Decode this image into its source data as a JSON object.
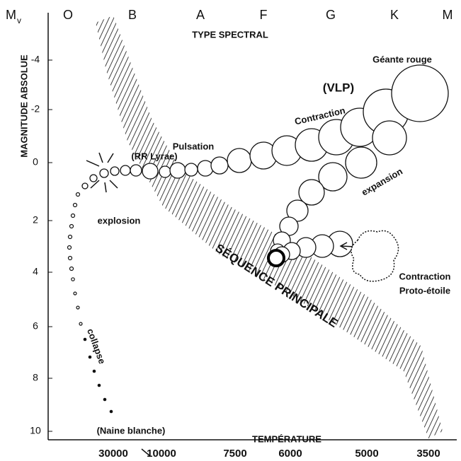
{
  "axes": {
    "y_symbol": "M",
    "y_symbol_sub": "v",
    "y_title": "MAGNITUDE ABSOLUE",
    "y_labels": [
      "-4",
      "-2",
      "0",
      "2",
      "4",
      "6",
      "8",
      "10"
    ],
    "spectral_title": "TYPE SPECTRAL",
    "spectral_classes": [
      "O",
      "B",
      "A",
      "F",
      "G",
      "K",
      "M"
    ],
    "temperature_title": "TEMPÉRATURE",
    "temperatures": [
      "30000",
      "10000",
      "7500",
      "6000",
      "5000",
      "3500"
    ]
  },
  "labels": {
    "red_giant": "Géante rouge",
    "vlp": "(VLP)",
    "contraction_top": "Contraction",
    "pulsation": "Pulsation",
    "rr_lyrae": "(RR Lyrae)",
    "expansion": "expansion",
    "explosion": "explosion",
    "main_sequence": "SÉQUENCE PRINCIPALE",
    "contraction_proto": "Contraction",
    "proto_star": "Proto-étoile",
    "collapse": "collapse",
    "white_dwarf": "(Naine blanche)"
  }
}
